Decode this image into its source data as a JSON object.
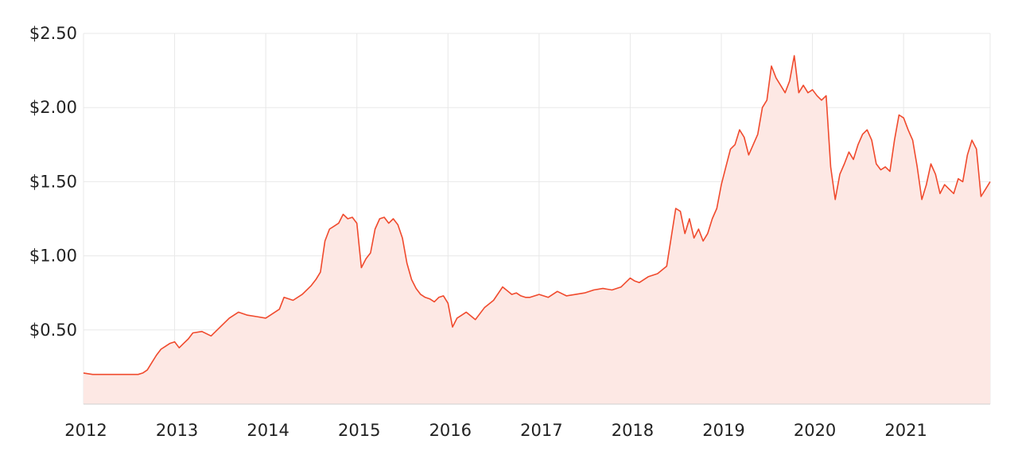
{
  "chart_data": {
    "type": "area",
    "title": "",
    "xlabel": "",
    "ylabel": "",
    "x_ticks": [
      {
        "label": "2012",
        "value": 2012
      },
      {
        "label": "2013",
        "value": 2013
      },
      {
        "label": "2014",
        "value": 2014
      },
      {
        "label": "2015",
        "value": 2015
      },
      {
        "label": "2016",
        "value": 2016
      },
      {
        "label": "2017",
        "value": 2017
      },
      {
        "label": "2018",
        "value": 2018
      },
      {
        "label": "2019",
        "value": 2019
      },
      {
        "label": "2020",
        "value": 2020
      },
      {
        "label": "2021",
        "value": 2021
      }
    ],
    "y_ticks": [
      {
        "label": "$0.50",
        "value": 0.5
      },
      {
        "label": "$1.00",
        "value": 1.0
      },
      {
        "label": "$1.50",
        "value": 1.5
      },
      {
        "label": "$2.00",
        "value": 2.0
      },
      {
        "label": "$2.50",
        "value": 2.5
      }
    ],
    "xlim": [
      2012,
      2021.95
    ],
    "ylim": [
      0,
      2.5
    ],
    "grid": true,
    "colors": {
      "line": "#f04a2d",
      "fill": "#fde8e4",
      "grid": "#e8e8e8",
      "text": "#222222"
    },
    "series": [
      {
        "x": [
          2012.0,
          2012.1,
          2012.2,
          2012.3,
          2012.4,
          2012.5,
          2012.55,
          2012.6,
          2012.65,
          2012.7,
          2012.75,
          2012.8,
          2012.85,
          2012.9,
          2012.95,
          2013.0,
          2013.05,
          2013.1,
          2013.15,
          2013.2,
          2013.3,
          2013.4,
          2013.5,
          2013.6,
          2013.7,
          2013.8,
          2013.9,
          2014.0,
          2014.05,
          2014.1,
          2014.15,
          2014.2,
          2014.3,
          2014.4,
          2014.5,
          2014.55,
          2014.6,
          2014.65,
          2014.7,
          2014.75,
          2014.8,
          2014.85,
          2014.9,
          2014.95,
          2015.0,
          2015.05,
          2015.1,
          2015.15,
          2015.2,
          2015.25,
          2015.3,
          2015.35,
          2015.4,
          2015.45,
          2015.5,
          2015.55,
          2015.6,
          2015.65,
          2015.7,
          2015.75,
          2015.8,
          2015.85,
          2015.9,
          2015.95,
          2016.0,
          2016.05,
          2016.1,
          2016.15,
          2016.2,
          2016.3,
          2016.4,
          2016.5,
          2016.6,
          2016.7,
          2016.75,
          2016.8,
          2016.85,
          2016.9,
          2017.0,
          2017.1,
          2017.2,
          2017.3,
          2017.4,
          2017.5,
          2017.6,
          2017.7,
          2017.8,
          2017.9,
          2018.0,
          2018.05,
          2018.1,
          2018.2,
          2018.3,
          2018.4,
          2018.5,
          2018.55,
          2018.6,
          2018.65,
          2018.7,
          2018.75,
          2018.8,
          2018.85,
          2018.9,
          2018.95,
          2019.0,
          2019.05,
          2019.1,
          2019.15,
          2019.2,
          2019.25,
          2019.3,
          2019.35,
          2019.4,
          2019.45,
          2019.5,
          2019.55,
          2019.6,
          2019.65,
          2019.7,
          2019.75,
          2019.8,
          2019.85,
          2019.9,
          2019.95,
          2020.0,
          2020.05,
          2020.1,
          2020.15,
          2020.2,
          2020.25,
          2020.3,
          2020.35,
          2020.4,
          2020.45,
          2020.5,
          2020.55,
          2020.6,
          2020.65,
          2020.7,
          2020.75,
          2020.8,
          2020.85,
          2020.9,
          2020.95,
          2021.0,
          2021.05,
          2021.1,
          2021.15,
          2021.2,
          2021.25,
          2021.3,
          2021.35,
          2021.4,
          2021.45,
          2021.5,
          2021.55,
          2021.6,
          2021.65,
          2021.7,
          2021.75,
          2021.8,
          2021.85,
          2021.9,
          2021.95
        ],
        "values": [
          0.21,
          0.2,
          0.2,
          0.2,
          0.2,
          0.2,
          0.2,
          0.2,
          0.21,
          0.23,
          0.28,
          0.33,
          0.37,
          0.39,
          0.41,
          0.42,
          0.38,
          0.41,
          0.44,
          0.48,
          0.49,
          0.46,
          0.52,
          0.58,
          0.62,
          0.6,
          0.59,
          0.58,
          0.6,
          0.62,
          0.64,
          0.72,
          0.7,
          0.74,
          0.8,
          0.84,
          0.89,
          1.1,
          1.18,
          1.2,
          1.22,
          1.28,
          1.25,
          1.26,
          1.22,
          0.92,
          0.98,
          1.02,
          1.18,
          1.25,
          1.26,
          1.22,
          1.25,
          1.21,
          1.12,
          0.95,
          0.84,
          0.78,
          0.74,
          0.72,
          0.71,
          0.69,
          0.72,
          0.73,
          0.68,
          0.52,
          0.58,
          0.6,
          0.62,
          0.57,
          0.65,
          0.7,
          0.79,
          0.74,
          0.75,
          0.73,
          0.72,
          0.72,
          0.74,
          0.72,
          0.76,
          0.73,
          0.74,
          0.75,
          0.77,
          0.78,
          0.77,
          0.79,
          0.85,
          0.83,
          0.82,
          0.86,
          0.88,
          0.93,
          1.32,
          1.3,
          1.15,
          1.25,
          1.12,
          1.18,
          1.1,
          1.15,
          1.25,
          1.32,
          1.48,
          1.6,
          1.72,
          1.75,
          1.85,
          1.8,
          1.68,
          1.75,
          1.82,
          2.0,
          2.05,
          2.28,
          2.2,
          2.15,
          2.1,
          2.18,
          2.35,
          2.1,
          2.15,
          2.1,
          2.12,
          2.08,
          2.05,
          2.08,
          1.6,
          1.38,
          1.55,
          1.62,
          1.7,
          1.65,
          1.75,
          1.82,
          1.85,
          1.78,
          1.62,
          1.58,
          1.6,
          1.57,
          1.78,
          1.95,
          1.93,
          1.85,
          1.78,
          1.6,
          1.38,
          1.48,
          1.62,
          1.55,
          1.42,
          1.48,
          1.45,
          1.42,
          1.52,
          1.5,
          1.68,
          1.78,
          1.72,
          1.4,
          1.45,
          1.5
        ]
      }
    ]
  }
}
